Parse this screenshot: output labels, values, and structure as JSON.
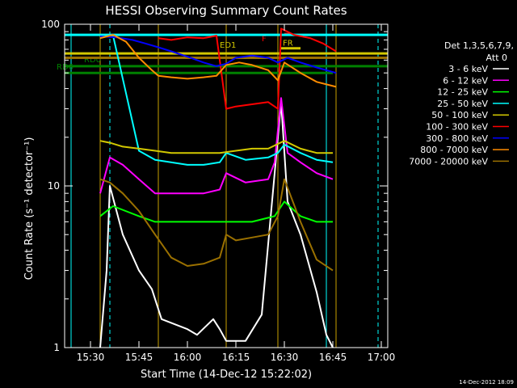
{
  "chart_data": {
    "type": "line",
    "title": "HESSI Observing Summary Count Rates",
    "xlabel": "Start Time (14-Dec-12 15:22:02)",
    "ylabel": "Count Rate (s⁻¹ detector⁻¹)",
    "y_scale": "log",
    "ylim": [
      1,
      100
    ],
    "xlim": [
      "15:22",
      "17:02"
    ],
    "x_ticks": [
      "15:30",
      "15:45",
      "16:00",
      "16:15",
      "16:30",
      "16:45",
      "17:00"
    ],
    "y_ticks": [
      "1",
      "10",
      "100"
    ],
    "grid": false,
    "legend_position": "right",
    "legend_header": [
      "Det 1,3,5,6,7,9,",
      "Att 0"
    ],
    "timestamp": "14-Dec-2012 18:09",
    "series": [
      {
        "name": "3 - 6 keV",
        "color": "#ffffff",
        "x": [
          "15:33",
          "15:35",
          "15:36",
          "15:40",
          "15:45",
          "15:49",
          "15:52",
          "16:00",
          "16:03",
          "16:08",
          "16:10",
          "16:12",
          "16:18",
          "16:23",
          "16:27",
          "16:29",
          "16:31",
          "16:35",
          "16:40",
          "16:43",
          "16:45"
        ],
        "y": [
          1,
          3,
          10,
          5,
          3,
          2.3,
          1.5,
          1.3,
          1.2,
          1.5,
          1.3,
          1.1,
          1.1,
          1.6,
          12,
          33,
          8,
          5,
          2.2,
          1.2,
          1
        ]
      },
      {
        "name": "6 - 12 keV",
        "color": "#ff00ff",
        "x": [
          "15:33",
          "15:36",
          "15:40",
          "15:45",
          "15:50",
          "15:55",
          "16:00",
          "16:05",
          "16:10",
          "16:12",
          "16:18",
          "16:25",
          "16:27",
          "16:29",
          "16:31",
          "16:35",
          "16:40",
          "16:45"
        ],
        "y": [
          9,
          15,
          13.5,
          11,
          9,
          9,
          9,
          9,
          9.5,
          12,
          10.5,
          11,
          14,
          35,
          16,
          14,
          12,
          11
        ]
      },
      {
        "name": "12 - 25 keV",
        "color": "#00ff00",
        "x": [
          "15:33",
          "15:37",
          "15:45",
          "15:50",
          "16:00",
          "16:10",
          "16:20",
          "16:27",
          "16:30",
          "16:35",
          "16:40",
          "16:45"
        ],
        "y": [
          6.5,
          7.5,
          6.5,
          6,
          6,
          6,
          6,
          6.5,
          8,
          6.5,
          6,
          6
        ]
      },
      {
        "name": "25 - 50 keV",
        "color": "#00ffff",
        "x": [
          "15:33",
          "15:37",
          "15:45",
          "15:50",
          "16:00",
          "16:05",
          "16:10",
          "16:12",
          "16:18",
          "16:25",
          "16:28",
          "16:30",
          "16:35",
          "16:40",
          "16:45"
        ],
        "y": [
          83,
          85,
          16.5,
          14.5,
          13.5,
          13.5,
          14,
          16,
          14.5,
          15,
          16,
          18,
          16,
          14.5,
          14
        ]
      },
      {
        "name": "50 - 100 keV",
        "color": "#d2c800",
        "x": [
          "15:33",
          "15:36",
          "15:40",
          "15:45",
          "15:50",
          "15:55",
          "16:00",
          "16:05",
          "16:10",
          "16:15",
          "16:20",
          "16:25",
          "16:30",
          "16:35",
          "16:40",
          "16:45"
        ],
        "y": [
          19,
          18.5,
          17.5,
          17,
          16.5,
          16,
          16,
          16,
          16,
          16.5,
          17,
          17,
          19,
          17,
          16,
          16
        ]
      },
      {
        "name": "100 - 300 keV",
        "color": "#ff0000",
        "x": [
          "15:51",
          "15:55",
          "16:00",
          "16:05",
          "16:09",
          "16:12",
          "16:15",
          "16:20",
          "16:25",
          "16:28",
          "16:29",
          "16:33",
          "16:38",
          "16:42",
          "16:46"
        ],
        "y": [
          82,
          80,
          83,
          82,
          85,
          30,
          31,
          32,
          33,
          30,
          94,
          86,
          82,
          76,
          68
        ]
      },
      {
        "name": "300 - 800 keV",
        "color": "#0000ff",
        "x": [
          "15:33",
          "15:38",
          "15:43",
          "15:47",
          "15:51",
          "15:55",
          "16:00",
          "16:05",
          "16:09",
          "16:12",
          "16:15",
          "16:20",
          "16:25",
          "16:28",
          "16:31",
          "16:35",
          "16:40",
          "16:46"
        ],
        "y": [
          84,
          83,
          80,
          76,
          72,
          68,
          63,
          58,
          55,
          57,
          62,
          64,
          62,
          58,
          62,
          58,
          54,
          50
        ]
      },
      {
        "name": "800 - 7000 keV",
        "color": "#ff8c00",
        "x": [
          "15:33",
          "15:37",
          "15:41",
          "15:45",
          "15:49",
          "15:51",
          "15:55",
          "16:00",
          "16:05",
          "16:09",
          "16:12",
          "16:16",
          "16:20",
          "16:25",
          "16:28",
          "16:30",
          "16:35",
          "16:40",
          "16:46"
        ],
        "y": [
          82,
          86,
          78,
          62,
          52,
          48,
          47,
          46,
          47,
          48,
          56,
          58,
          56,
          52,
          45,
          58,
          50,
          44,
          41
        ]
      },
      {
        "name": "7000 - 20000 keV",
        "color": "#9a7000",
        "x": [
          "15:33",
          "15:36",
          "15:40",
          "15:45",
          "15:50",
          "15:55",
          "16:00",
          "16:05",
          "16:10",
          "16:12",
          "16:15",
          "16:20",
          "16:25",
          "16:28",
          "16:30",
          "16:35",
          "16:40",
          "16:45"
        ],
        "y": [
          11,
          10.5,
          9,
          7,
          5,
          3.6,
          3.2,
          3.3,
          3.6,
          5,
          4.6,
          4.8,
          5,
          6.5,
          11,
          6,
          3.5,
          3
        ]
      }
    ],
    "annotations": [
      {
        "label": "RD0",
        "color": "#008000",
        "x": [
          "15:22",
          "16:45"
        ],
        "y": 50
      },
      {
        "label": "RD6",
        "color": "#008000",
        "x": [
          "15:22",
          "17:02"
        ],
        "y": 55
      },
      {
        "label": "F",
        "color": "#ff0000",
        "x": [
          "16:30",
          "16:32"
        ],
        "y": 87
      },
      {
        "label": "FR",
        "color": "#d2c800",
        "x": [
          "16:29",
          "16:35"
        ],
        "y": 71
      },
      {
        "label": "ED1",
        "color": "#d2c800",
        "x": [
          "15:22",
          "17:02"
        ],
        "y": 66
      },
      {
        "label": "",
        "color": "#9a7000",
        "x": [
          "15:22",
          "17:02"
        ],
        "y": 62
      },
      {
        "label": "",
        "color": "#00ffff",
        "x": [
          "15:22",
          "17:02"
        ],
        "y": 86
      }
    ],
    "vertical_lines": [
      {
        "x": "15:24",
        "color": "#00ffff",
        "style": "solid"
      },
      {
        "x": "15:36",
        "color": "#00ffff",
        "style": "dashed"
      },
      {
        "x": "16:43",
        "color": "#00ffff",
        "style": "solid"
      },
      {
        "x": "16:59",
        "color": "#00ffff",
        "style": "dashed"
      },
      {
        "x": "15:33",
        "color": "#c8a000",
        "style": "solid"
      },
      {
        "x": "15:51",
        "color": "#c8a000",
        "style": "solid"
      },
      {
        "x": "16:12",
        "color": "#c8a000",
        "style": "solid"
      },
      {
        "x": "16:28",
        "color": "#c8a000",
        "style": "solid"
      },
      {
        "x": "16:46",
        "color": "#c8a000",
        "style": "solid"
      }
    ]
  }
}
